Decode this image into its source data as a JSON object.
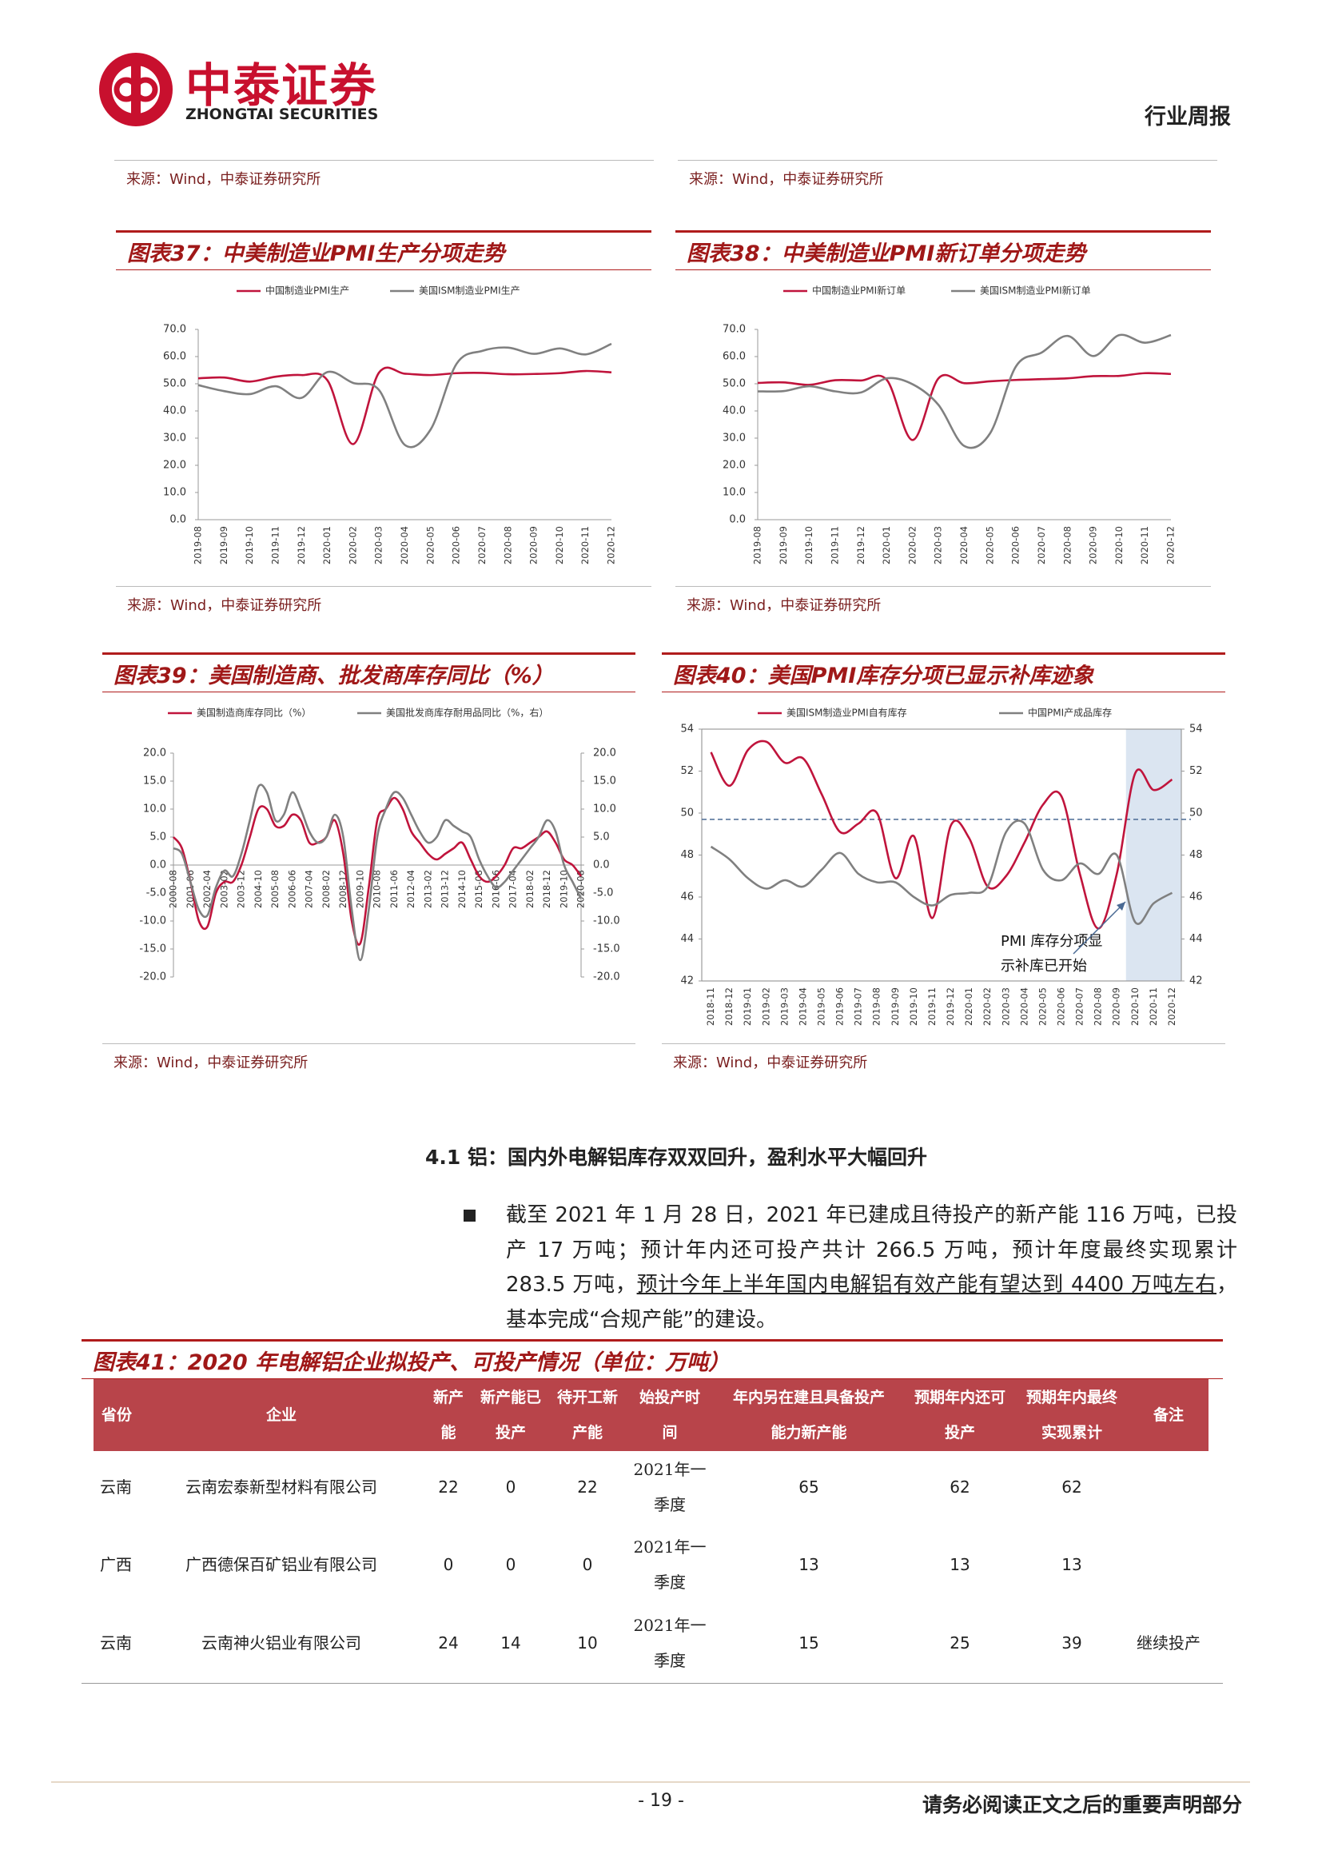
{
  "header": {
    "brand": "中泰证券",
    "brand_en": "ZHONGTAI SECURITIES",
    "report_type": "行业周报"
  },
  "top_sources": [
    "来源：Wind，中泰证券研究所",
    "来源：Wind，中泰证券研究所"
  ],
  "chart_data": [
    {
      "type": "line",
      "title": "图表37：中美制造业PMI生产分项走势",
      "source": "来源：Wind，中泰证券研究所",
      "categories": [
        "2019-08",
        "2019-09",
        "2019-10",
        "2019-11",
        "2019-12",
        "2020-01",
        "2020-02",
        "2020-03",
        "2020-04",
        "2020-05",
        "2020-06",
        "2020-07",
        "2020-08",
        "2020-09",
        "2020-10",
        "2020-11",
        "2020-12"
      ],
      "series": [
        {
          "name": "中国制造业PMI生产",
          "color": "#c0143c",
          "values": [
            52.0,
            52.3,
            50.8,
            52.6,
            53.2,
            51.3,
            27.8,
            54.1,
            53.7,
            53.2,
            53.9,
            54.0,
            53.5,
            53.6,
            53.9,
            54.7,
            54.2
          ]
        },
        {
          "name": "美国ISM制造业PMI生产",
          "color": "#808080",
          "values": [
            49.5,
            47.3,
            46.2,
            49.1,
            44.8,
            54.3,
            50.3,
            47.7,
            27.5,
            33.2,
            57.3,
            62.1,
            63.3,
            61.0,
            63.0,
            60.8,
            64.7
          ]
        }
      ],
      "ylim": [
        0,
        70
      ],
      "yticks": [
        {
          "value": 0,
          "label": "0.0"
        },
        {
          "value": 10,
          "label": "10.0"
        },
        {
          "value": 20,
          "label": "20.0"
        },
        {
          "value": 30,
          "label": "30.0"
        },
        {
          "value": 40,
          "label": "40.0"
        },
        {
          "value": 50,
          "label": "50.0"
        },
        {
          "value": 60,
          "label": "60.0"
        },
        {
          "value": 70,
          "label": "70.0"
        }
      ],
      "grid": false
    },
    {
      "type": "line",
      "title": "图表38：中美制造业PMI新订单分项走势",
      "source": "来源：Wind，中泰证券研究所",
      "categories": [
        "2019-08",
        "2019-09",
        "2019-10",
        "2019-11",
        "2019-12",
        "2020-01",
        "2020-02",
        "2020-03",
        "2020-04",
        "2020-05",
        "2020-06",
        "2020-07",
        "2020-08",
        "2020-09",
        "2020-10",
        "2020-11",
        "2020-12"
      ],
      "series": [
        {
          "name": "中国制造业PMI新订单",
          "color": "#c0143c",
          "values": [
            50.3,
            50.5,
            49.6,
            51.3,
            51.2,
            51.4,
            29.3,
            52.0,
            50.2,
            50.9,
            51.4,
            51.7,
            52.0,
            52.8,
            52.9,
            53.9,
            53.6
          ]
        },
        {
          "name": "美国ISM制造业PMI新订单",
          "color": "#808080",
          "values": [
            47.2,
            47.3,
            49.1,
            47.2,
            46.8,
            52.0,
            49.8,
            42.2,
            27.1,
            31.8,
            56.4,
            61.5,
            67.6,
            60.2,
            67.9,
            65.1,
            67.9
          ]
        }
      ],
      "ylim": [
        0,
        70
      ],
      "yticks": [
        {
          "value": 0,
          "label": "0.0"
        },
        {
          "value": 10,
          "label": "10.0"
        },
        {
          "value": 20,
          "label": "20.0"
        },
        {
          "value": 30,
          "label": "30.0"
        },
        {
          "value": 40,
          "label": "40.0"
        },
        {
          "value": 50,
          "label": "50.0"
        },
        {
          "value": 60,
          "label": "60.0"
        },
        {
          "value": 70,
          "label": "70.0"
        }
      ],
      "grid": false
    },
    {
      "type": "line",
      "title": "图表39：美国制造商、批发商库存同比（%）",
      "source": "来源：Wind，中泰证券研究所",
      "categories": [
        "2000-08",
        null,
        "2001-06",
        null,
        "2002-04",
        null,
        "2003-02",
        null,
        "2003-12",
        null,
        "2004-10",
        null,
        "2005-08",
        null,
        "2006-06",
        null,
        "2007-04",
        null,
        "2008-02",
        null,
        "2008-12",
        null,
        "2009-10",
        null,
        "2010-08",
        null,
        "2011-06",
        null,
        "2012-04",
        null,
        "2013-02",
        null,
        "2013-12",
        null,
        "2014-10",
        null,
        "2015-08",
        null,
        "2016-06",
        null,
        "2017-04",
        null,
        "2018-02",
        null,
        "2018-12",
        null,
        "2019-10",
        null,
        "2020-08"
      ],
      "series": [
        {
          "name": "美国制造商库存同比（%）",
          "color": "#c0143c",
          "values": [
            5,
            3,
            -3,
            -10,
            -11,
            -5,
            -3,
            -3,
            0,
            5,
            10,
            10,
            7,
            7,
            9,
            8,
            4,
            4,
            5,
            8,
            2,
            -10,
            -14,
            -4,
            8,
            10,
            12,
            10,
            6,
            4,
            2,
            1,
            2,
            3,
            4,
            1,
            -2,
            -3,
            -2,
            0,
            3,
            3,
            4,
            5,
            6,
            4,
            1,
            0,
            -2
          ]
        },
        {
          "name": "美国批发商库存耐用品同比（%，右）",
          "color": "#808080",
          "axis": "y2",
          "values": [
            3,
            2,
            -3,
            -8,
            -9,
            -4,
            -1,
            -2,
            2,
            8,
            14,
            13,
            8,
            9,
            13,
            10,
            6,
            4,
            5,
            9,
            5,
            -8,
            -17,
            -8,
            5,
            10,
            13,
            12,
            9,
            6,
            4,
            5,
            8,
            7,
            6,
            5,
            1,
            -2,
            -4,
            -3,
            -1,
            1,
            3,
            5,
            8,
            6,
            0,
            -3,
            -6
          ]
        }
      ],
      "ylim": [
        -20,
        20
      ],
      "yticks": [
        {
          "value": -20,
          "label": "-20.0"
        },
        {
          "value": -15,
          "label": "-15.0"
        },
        {
          "value": -10,
          "label": "-10.0"
        },
        {
          "value": -5,
          "label": "-5.0"
        },
        {
          "value": 0,
          "label": "0.0"
        },
        {
          "value": 5,
          "label": "5.0"
        },
        {
          "value": 10,
          "label": "10.0"
        },
        {
          "value": 15,
          "label": "15.0"
        },
        {
          "value": 20,
          "label": "20.0"
        }
      ],
      "y2lim": [
        -20,
        20
      ],
      "y2ticks": [
        {
          "value": -20,
          "label": "-20.0"
        },
        {
          "value": -15,
          "label": "-15.0"
        },
        {
          "value": -10,
          "label": "-10.0"
        },
        {
          "value": -5,
          "label": "-5.0"
        },
        {
          "value": 0,
          "label": "0.0"
        },
        {
          "value": 5,
          "label": "5.0"
        },
        {
          "value": 10,
          "label": "10.0"
        },
        {
          "value": 15,
          "label": "15.0"
        },
        {
          "value": 20,
          "label": "20.0"
        }
      ],
      "grid": false
    },
    {
      "type": "line",
      "title": "图表40：美国PMI库存分项已显示补库迹象",
      "source": "来源：Wind，中泰证券研究所",
      "categories": [
        "2018-11",
        "2018-12",
        "2019-01",
        "2019-02",
        "2019-03",
        "2019-04",
        "2019-05",
        "2019-06",
        "2019-07",
        "2019-08",
        "2019-09",
        "2019-10",
        "2019-11",
        "2019-12",
        "2020-01",
        "2020-02",
        "2020-03",
        "2020-04",
        "2020-05",
        "2020-06",
        "2020-07",
        "2020-08",
        "2020-09",
        "2020-10",
        "2020-11",
        "2020-12"
      ],
      "series": [
        {
          "name": "美国ISM制造业PMI自有库存",
          "color": "#c0143c",
          "values": [
            52.9,
            51.3,
            53.0,
            53.4,
            52.4,
            52.6,
            50.9,
            49.1,
            49.5,
            50.0,
            46.9,
            48.9,
            45.0,
            49.4,
            48.8,
            46.5,
            47.0,
            48.6,
            50.4,
            50.8,
            47.1,
            44.5,
            47.1,
            51.9,
            51.1,
            51.6
          ]
        },
        {
          "name": "中国PMI产成品库存",
          "color": "#808080",
          "axis": "y2",
          "values": [
            48.4,
            47.8,
            46.9,
            46.4,
            46.8,
            46.5,
            47.3,
            48.1,
            47.1,
            46.7,
            46.7,
            46.0,
            45.6,
            46.1,
            46.2,
            46.5,
            49.1,
            49.5,
            47.3,
            46.8,
            47.6,
            47.1,
            48.0,
            44.8,
            45.7,
            46.2
          ]
        }
      ],
      "ylim": [
        42,
        54
      ],
      "yticks": [
        42,
        44,
        46,
        48,
        50,
        52,
        54
      ],
      "y2lim": [
        42,
        54
      ],
      "y2ticks": [
        42,
        44,
        46,
        48,
        50,
        52,
        54
      ],
      "hline": 49.7,
      "highlight_range": [
        "2020-10",
        "2020-12"
      ],
      "annotation": [
        "PMI 库存分项显",
        "示补库已开始"
      ],
      "grid": false
    }
  ],
  "section": {
    "heading": "4.1 铝：国内外电解铝库存双双回升，盈利水平大幅回升",
    "paragraph": [
      "截至 2021 年 1 月 28 日，2021 年已建成且待投产的新产能 116 万吨，已投产 17 万吨；预计年内还可投产共计 266.5 万吨，预计年度最终实现累计 283.5 万吨，",
      "预计今年上半年国内电解铝有效产能有望达到 4400 万吨左右",
      "，基本完成“合规产能”的建设。"
    ]
  },
  "table": {
    "title": "图表41：2020 年电解铝企业拟投产、可投产情况（单位：万吨）",
    "columns": [
      "省份",
      "企业",
      "新产能",
      "新产能已投产",
      "待开工新产能",
      "始投产时间",
      "年内另在建且具备投产能力新产能",
      "预期年内还可投产",
      "预期年内最终实现累计",
      "备注"
    ],
    "rows": [
      {
        "province": "云南",
        "company": "云南宏泰新型材料有限公司",
        "new": "22",
        "produced": "0",
        "pending": "22",
        "start": "2021年一季度",
        "building": "65",
        "expected": "62",
        "cumulative": "62"
      },
      {
        "province": "广西",
        "company": "广西德保百矿铝业有限公司",
        "new": "0",
        "produced": "0",
        "pending": "0",
        "start": "2021年一季度",
        "building": "13",
        "expected": "13",
        "cumulative": "13"
      },
      {
        "province": "云南",
        "company": "云南神火铝业有限公司",
        "new": "24",
        "produced": "14",
        "pending": "10",
        "start": "2021年一季度",
        "building": "15",
        "expected": "25",
        "cumulative": "39",
        "note": "继续投产"
      }
    ]
  },
  "footer": {
    "page": "- 19 -",
    "notice": "请务必阅读正文之后的重要声明部分"
  }
}
